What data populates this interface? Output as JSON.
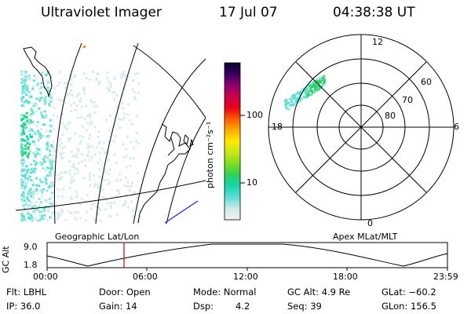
{
  "header": {
    "title": "Ultraviolet Imager",
    "date": "17 Jul 07",
    "time": "04:38:38 UT"
  },
  "colorbar": {
    "unit_label": "photon cm⁻²s⁻¹",
    "ticks": [
      "100",
      "10"
    ],
    "stops": [
      "#f2f2f2",
      "#cde8e8",
      "#5fe0d6",
      "#19d3b0",
      "#2ad15c",
      "#7fdc1e",
      "#c6e81a",
      "#ffe800",
      "#ffad00",
      "#ff5a00",
      "#e8001a",
      "#c8004a",
      "#8c006e",
      "#3a0060",
      "#0a0030"
    ]
  },
  "panels": {
    "geographic_label": "Geographic Lat/Lon",
    "apex_label": "Apex  MLat/MLT"
  },
  "polar": {
    "mlt_labels": [
      "12",
      "6",
      "0",
      "18"
    ],
    "lat_labels": [
      "60",
      "70",
      "80"
    ]
  },
  "altitude_plot": {
    "ylabel": "GC Alt",
    "y_ticks": [
      "9.0",
      "1.8"
    ],
    "x_ticks": [
      "00:00",
      "06:00",
      "12:00",
      "18:00",
      "23:59"
    ],
    "current_time_marker": "04:38",
    "marker_color": "#dd0000"
  },
  "info": {
    "flt": "Flt: LBHL",
    "door": "Door: Open",
    "mode": "Mode: Normal",
    "gc_alt": "GC Alt: 4.9 Re",
    "glat": "GLat: −60.2",
    "ip": "IP: 36.0",
    "gain": "Gain: 14",
    "dsp_label": "Dsp:",
    "dsp_value": "4.2",
    "seq": "Seq: 39",
    "glon": "GLon: 156.5"
  }
}
